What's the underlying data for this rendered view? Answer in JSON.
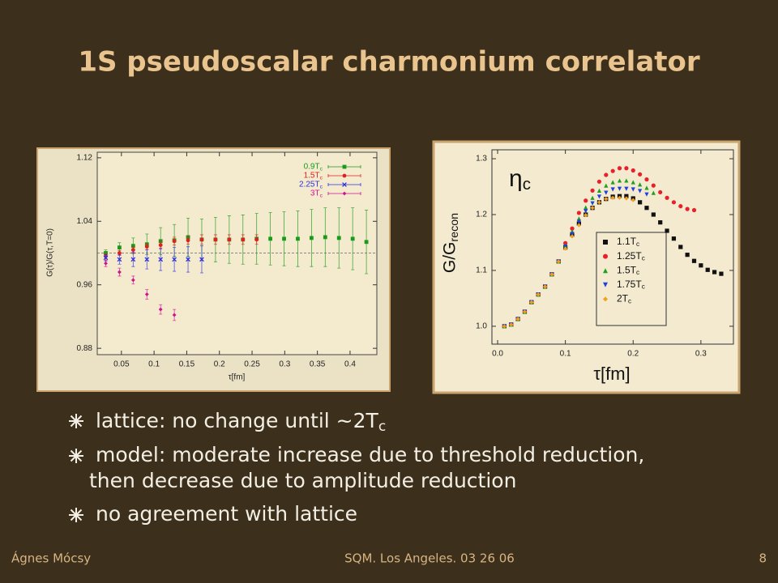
{
  "title": "1S pseudoscalar charmonium correlator",
  "bullets": [
    {
      "lines": [
        "lattice: no change until ~2Tc"
      ]
    },
    {
      "lines": [
        "model: moderate increase due to threshold reduction,",
        "then decrease due to amplitude reduction"
      ]
    },
    {
      "lines": [
        "no agreement with lattice"
      ]
    }
  ],
  "footer": {
    "author": "Ágnes Mócsy",
    "event": "SQM. Los Angeles. 03 26 06",
    "page": "8"
  },
  "chart_data": [
    {
      "type": "scatter",
      "x_label": "τ[fm]",
      "y_label": "G(τ)/G(τ,T=0)",
      "xlim": [
        0.013,
        0.441
      ],
      "ylim": [
        0.872,
        1.127
      ],
      "xticks": [
        0.05,
        0.1,
        0.15,
        0.2,
        0.25,
        0.3,
        0.35,
        0.4
      ],
      "yticks": [
        0.88,
        0.96,
        1.04,
        1.12
      ],
      "reference_line": 1,
      "legend": "upper right",
      "x": [
        0.026,
        0.047,
        0.068,
        0.089,
        0.11,
        0.131,
        0.152,
        0.173,
        0.194,
        0.215,
        0.236,
        0.257,
        0.278,
        0.299,
        0.32,
        0.341,
        0.362,
        0.383,
        0.404,
        0.425
      ],
      "series": [
        {
          "name": "0.9Tc",
          "color": "#1a9a1a",
          "marker": "square",
          "values": [
            1.0,
            1.007,
            1.009,
            1.011,
            1.015,
            1.016,
            1.02,
            1.017,
            1.017,
            1.017,
            1.017,
            1.018,
            1.018,
            1.018,
            1.018,
            1.019,
            1.02,
            1.019,
            1.018,
            1.014
          ],
          "errors": [
            0.004,
            0.006,
            0.01,
            0.013,
            0.017,
            0.02,
            0.024,
            0.026,
            0.028,
            0.03,
            0.031,
            0.032,
            0.033,
            0.034,
            0.035,
            0.036,
            0.037,
            0.038,
            0.039,
            0.04
          ]
        },
        {
          "name": "1.5Tc",
          "color": "#e02020",
          "marker": "circle",
          "values": [
            0.996,
            1.0,
            1.004,
            1.008,
            1.01,
            1.015,
            1.016,
            1.017,
            1.017,
            1.017,
            1.017,
            1.017,
            null,
            null,
            null,
            null,
            null,
            null,
            null,
            null
          ],
          "errors": [
            0.003,
            0.003,
            0.004,
            0.004,
            0.005,
            0.005,
            0.005,
            0.006,
            0.006,
            0.006,
            0.006,
            0.006,
            null,
            null,
            null,
            null,
            null,
            null,
            null,
            null
          ]
        },
        {
          "name": "2.25Tc",
          "color": "#3030e0",
          "marker": "cross",
          "values": [
            0.994,
            0.992,
            0.992,
            0.992,
            0.992,
            0.992,
            0.992,
            0.992,
            null,
            null,
            null,
            null,
            null,
            null,
            null,
            null,
            null,
            null,
            null,
            null
          ],
          "errors": [
            0.004,
            0.006,
            0.009,
            0.012,
            0.014,
            0.015,
            0.016,
            0.017,
            null,
            null,
            null,
            null,
            null,
            null,
            null,
            null,
            null,
            null,
            null,
            null
          ]
        },
        {
          "name": "3Tc",
          "color": "#d01090",
          "marker": "diamond",
          "values": [
            0.987,
            0.976,
            0.966,
            0.948,
            0.929,
            0.922,
            null,
            null,
            null,
            null,
            null,
            null,
            null,
            null,
            null,
            null,
            null,
            null,
            null,
            null
          ],
          "errors": [
            0.004,
            0.005,
            0.005,
            0.006,
            0.006,
            0.007,
            null,
            null,
            null,
            null,
            null,
            null,
            null,
            null,
            null,
            null,
            null,
            null,
            null,
            null
          ]
        }
      ]
    },
    {
      "type": "scatter",
      "x_label": "τ[fm]",
      "y_label": "G/Grecon",
      "annotation": "ηc",
      "xlim": [
        -0.0084,
        0.348
      ],
      "ylim": [
        0.968,
        1.316
      ],
      "xticks": [
        {
          "value": 0,
          "label": "0.0"
        },
        0.1,
        0.2,
        0.3
      ],
      "yticks": [
        {
          "value": 1,
          "label": "1.0"
        },
        1.1,
        1.2,
        1.3
      ],
      "legend": "center right",
      "x": [
        0.01,
        0.02,
        0.03,
        0.04,
        0.05,
        0.06,
        0.07,
        0.08,
        0.09,
        0.1,
        0.11,
        0.12,
        0.13,
        0.14,
        0.15,
        0.16,
        0.17,
        0.18,
        0.19,
        0.2,
        0.21,
        0.22,
        0.23,
        0.24,
        0.25,
        0.26,
        0.27,
        0.28,
        0.29,
        0.3,
        0.31,
        0.32,
        0.33
      ],
      "series": [
        {
          "name": "1.1Tc",
          "color": "#111111",
          "marker": "square",
          "values": [
            1.0,
            1.003,
            1.013,
            1.026,
            1.043,
            1.057,
            1.071,
            1.093,
            1.116,
            1.141,
            1.164,
            1.184,
            1.2,
            1.212,
            1.222,
            1.228,
            1.232,
            1.233,
            1.233,
            1.229,
            1.222,
            1.212,
            1.2,
            1.186,
            1.171,
            1.157,
            1.142,
            1.128,
            1.117,
            1.109,
            1.101,
            1.097,
            1.094
          ]
        },
        {
          "name": "1.25Tc",
          "color": "#e8202a",
          "marker": "circle",
          "values": [
            1.0,
            1.003,
            1.013,
            1.026,
            1.043,
            1.057,
            1.071,
            1.093,
            1.116,
            1.149,
            1.175,
            1.203,
            1.225,
            1.243,
            1.259,
            1.271,
            1.278,
            1.283,
            1.283,
            1.279,
            1.272,
            1.263,
            1.252,
            1.24,
            1.23,
            1.222,
            1.215,
            1.21,
            1.208,
            null,
            null,
            null,
            null
          ]
        },
        {
          "name": "1.5Tc",
          "color": "#20a020",
          "marker": "triangle-up",
          "values": [
            1.0,
            1.003,
            1.013,
            1.026,
            1.043,
            1.057,
            1.071,
            1.093,
            1.116,
            1.145,
            1.17,
            1.193,
            1.213,
            1.23,
            1.243,
            1.252,
            1.258,
            1.261,
            1.261,
            1.258,
            1.254,
            1.248,
            1.239,
            null,
            null,
            null,
            null,
            null,
            null,
            null,
            null,
            null,
            null
          ]
        },
        {
          "name": "1.75Tc",
          "color": "#2040e0",
          "marker": "triangle-down",
          "values": [
            1.0,
            1.003,
            1.013,
            1.026,
            1.043,
            1.057,
            1.071,
            1.093,
            1.116,
            1.143,
            1.165,
            1.187,
            1.206,
            1.22,
            1.232,
            1.239,
            1.245,
            1.246,
            1.246,
            1.245,
            1.242,
            1.236,
            null,
            null,
            null,
            null,
            null,
            null,
            null,
            null,
            null,
            null,
            null
          ]
        },
        {
          "name": "2Tc",
          "color": "#f0a020",
          "marker": "diamond",
          "values": [
            1.0,
            1.003,
            1.013,
            1.026,
            1.043,
            1.057,
            1.071,
            1.093,
            1.116,
            1.139,
            1.161,
            1.181,
            1.199,
            1.212,
            1.222,
            1.228,
            1.23,
            1.23,
            1.229,
            1.226,
            null,
            null,
            null,
            null,
            null,
            null,
            null,
            null,
            null,
            null,
            null,
            null,
            null
          ]
        }
      ]
    }
  ]
}
